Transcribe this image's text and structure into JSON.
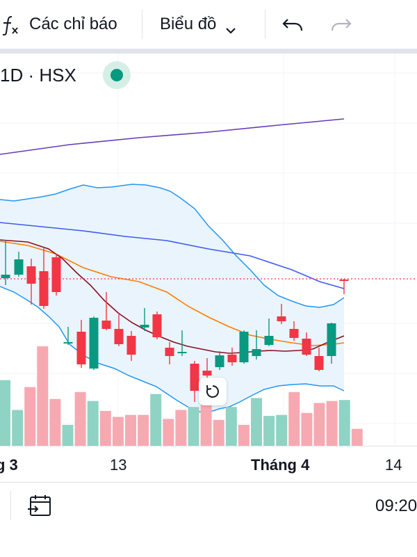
{
  "toolbar": {
    "indicators_label": "Các chỉ báo",
    "chart_type_label": "Biểu đồ",
    "icons": [
      "fx-icon",
      "chevron-down-icon",
      "undo-icon",
      "redo-icon"
    ]
  },
  "legend": {
    "text": "1D · HSX",
    "status_color": "#089981"
  },
  "chart_data": {
    "type": "candlestick",
    "exchange": "HSX",
    "interval": "1D",
    "x_tick_labels": [
      "g 3",
      "13",
      "Tháng 4",
      "14"
    ],
    "volume": [
      {
        "v": 0.66,
        "dir": "up"
      },
      {
        "v": 0.36,
        "dir": "up"
      },
      {
        "v": 0.59,
        "dir": "down"
      },
      {
        "v": 1.0,
        "dir": "down"
      },
      {
        "v": 0.47,
        "dir": "down"
      },
      {
        "v": 0.21,
        "dir": "up"
      },
      {
        "v": 0.54,
        "dir": "down"
      },
      {
        "v": 0.45,
        "dir": "up"
      },
      {
        "v": 0.35,
        "dir": "down"
      },
      {
        "v": 0.29,
        "dir": "down"
      },
      {
        "v": 0.31,
        "dir": "down"
      },
      {
        "v": 0.31,
        "dir": "down"
      },
      {
        "v": 0.52,
        "dir": "up"
      },
      {
        "v": 0.27,
        "dir": "down"
      },
      {
        "v": 0.36,
        "dir": "down"
      },
      {
        "v": 0.39,
        "dir": "up"
      },
      {
        "v": 0.41,
        "dir": "down"
      },
      {
        "v": 0.26,
        "dir": "down"
      },
      {
        "v": 0.39,
        "dir": "up"
      },
      {
        "v": 0.21,
        "dir": "down"
      },
      {
        "v": 0.48,
        "dir": "up"
      },
      {
        "v": 0.3,
        "dir": "up"
      },
      {
        "v": 0.31,
        "dir": "up"
      },
      {
        "v": 0.54,
        "dir": "down"
      },
      {
        "v": 0.33,
        "dir": "down"
      },
      {
        "v": 0.43,
        "dir": "down"
      },
      {
        "v": 0.45,
        "dir": "down"
      },
      {
        "v": 0.46,
        "dir": "up"
      },
      {
        "v": 0.17,
        "dir": "down"
      }
    ],
    "colors": {
      "up": "#089981",
      "down": "#f23645",
      "vol_up": "#8fd3c4",
      "vol_down": "#f7a9b1",
      "bb_band": "#2196f3",
      "bb_fill": "#eaf4fd",
      "bb_basis": "#3d5af1",
      "ma_slow": "#673ab7",
      "ma_orange": "#ff7c00",
      "ma_maroon": "#880e1f",
      "last_price": "#f23645"
    },
    "grid": true,
    "legend_placement": "top-left"
  },
  "bottom_bar": {
    "time": "09:20",
    "icons": [
      "calendar-goto-icon"
    ]
  },
  "controls": {
    "icons": [
      "reset-zoom-icon"
    ]
  }
}
